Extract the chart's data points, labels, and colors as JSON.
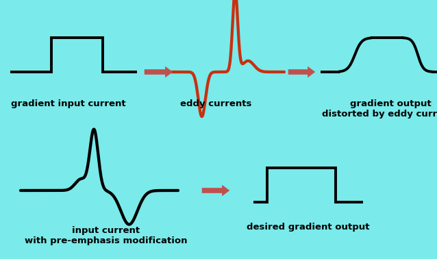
{
  "bg_color": "#7AEAEA",
  "line_color": "#000000",
  "arrow_color": "#C0504D",
  "eddy_color": "#C83010",
  "line_width": 2.8,
  "font_size": 9.5,
  "font_weight": "bold",
  "labels": {
    "gradient_input": "gradient input current",
    "eddy": "eddy currents",
    "gradient_output": "gradient output\ndistorted by eddy currents",
    "input_preemphasis": "input current\nwith pre-emphasis modification",
    "desired_output": "desired gradient output"
  }
}
